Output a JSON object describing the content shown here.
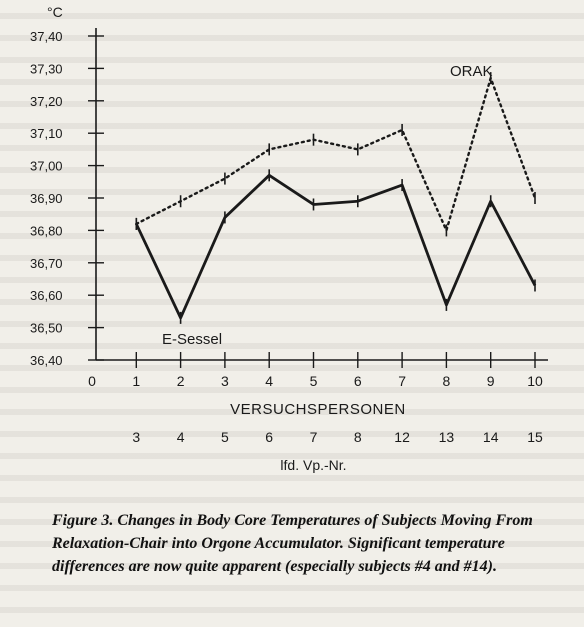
{
  "chart_data": {
    "type": "line",
    "y_unit": "°C",
    "yticks": [
      "37,40",
      "37,30",
      "37,20",
      "37,10",
      "37,00",
      "36,90",
      "36,80",
      "36,70",
      "36,60",
      "36,50",
      "36,40"
    ],
    "ylim": [
      36.4,
      37.4
    ],
    "xticks": [
      "0",
      "1",
      "2",
      "3",
      "4",
      "5",
      "6",
      "7",
      "8",
      "9",
      "10"
    ],
    "x": [
      1,
      2,
      3,
      4,
      5,
      6,
      7,
      8,
      9,
      10
    ],
    "xlabel": "VERSUCHSPERSONEN",
    "second_row_label": "lfd. Vp.-Nr.",
    "second_row_ticks": [
      "3",
      "4",
      "5",
      "6",
      "7",
      "8",
      "12",
      "13",
      "14",
      "15"
    ],
    "grid": false,
    "series": [
      {
        "name": "E-Sessel",
        "style": "solid",
        "values": [
          36.82,
          36.53,
          36.84,
          36.97,
          36.88,
          36.89,
          36.94,
          36.57,
          36.89,
          36.63
        ]
      },
      {
        "name": "ORAK",
        "style": "dotted",
        "values": [
          36.82,
          36.89,
          36.96,
          37.05,
          37.08,
          37.05,
          37.11,
          36.8,
          37.27,
          36.9
        ]
      }
    ]
  },
  "caption": "Figure 3. Changes in Body Core Temperatures of Subjects Moving From Relaxation-Chair into Orgone Accumulator. Significant temperature differences are now quite apparent (especially subjects #4 and #14)."
}
